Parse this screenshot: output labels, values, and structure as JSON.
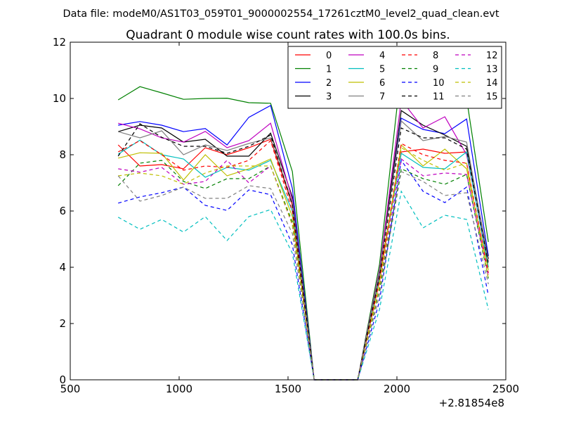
{
  "suptitle": "Data file: modeM0/AS1T03_059T01_9000002554_17261cztM0_level2_quad_clean.evt",
  "chart_data": {
    "type": "line",
    "title": "Quadrant 0 module wise count rates with 100.0s bins.",
    "xlabel": "",
    "ylabel": "",
    "xlim": [
      500,
      2500
    ],
    "ylim": [
      0,
      12
    ],
    "x_offset_label": "+2.81854e8",
    "xticks": [
      500,
      1000,
      1500,
      2000,
      2500
    ],
    "yticks": [
      0,
      2,
      4,
      6,
      8,
      10,
      12
    ],
    "grid": false,
    "legend_position": "top-right",
    "legend_columns": 4,
    "x": [
      720,
      820,
      920,
      1020,
      1120,
      1220,
      1320,
      1420,
      1520,
      1620,
      1720,
      1820,
      1920,
      2020,
      2120,
      2220,
      2320,
      2420
    ],
    "series": [
      {
        "name": "0",
        "color": "#ff0000",
        "dash": "solid",
        "values": [
          8.35,
          7.6,
          7.65,
          7.5,
          8.25,
          8.0,
          8.25,
          8.55,
          6.2,
          0,
          0,
          0,
          3.7,
          8.1,
          8.2,
          8.05,
          8.1,
          4.0
        ]
      },
      {
        "name": "1",
        "color": "#008000",
        "dash": "solid",
        "values": [
          9.95,
          10.42,
          10.2,
          9.97,
          10.0,
          10.01,
          9.85,
          9.83,
          7.4,
          0,
          0,
          0,
          4.1,
          11.05,
          10.75,
          9.7,
          10.0,
          4.9
        ]
      },
      {
        "name": "2",
        "color": "#0000ff",
        "dash": "solid",
        "values": [
          9.05,
          9.18,
          9.05,
          8.82,
          8.93,
          8.35,
          9.33,
          9.75,
          6.8,
          0,
          0,
          0,
          3.8,
          9.3,
          8.9,
          8.75,
          9.27,
          4.4
        ]
      },
      {
        "name": "3",
        "color": "#000000",
        "dash": "solid",
        "values": [
          8.82,
          9.05,
          8.95,
          8.45,
          8.55,
          7.95,
          7.95,
          8.77,
          6.5,
          0,
          0,
          0,
          3.8,
          9.57,
          9.05,
          8.7,
          8.3,
          4.3
        ]
      },
      {
        "name": "4",
        "color": "#bf00bf",
        "dash": "solid",
        "values": [
          9.12,
          8.92,
          8.6,
          8.45,
          8.83,
          8.25,
          8.5,
          9.12,
          6.4,
          0,
          0,
          0,
          3.9,
          9.95,
          8.95,
          9.35,
          8.0,
          4.2
        ]
      },
      {
        "name": "5",
        "color": "#00bfbf",
        "dash": "solid",
        "values": [
          8.02,
          8.52,
          8.0,
          7.85,
          7.2,
          7.55,
          7.45,
          7.8,
          6.0,
          0,
          0,
          0,
          3.6,
          8.05,
          7.55,
          7.5,
          8.1,
          4.0
        ]
      },
      {
        "name": "6",
        "color": "#bfbf00",
        "dash": "solid",
        "values": [
          7.88,
          8.07,
          8.05,
          7.1,
          8.0,
          7.25,
          7.5,
          7.85,
          5.8,
          0,
          0,
          0,
          3.5,
          8.35,
          7.6,
          8.2,
          7.5,
          3.9
        ]
      },
      {
        "name": "7",
        "color": "#808080",
        "dash": "solid",
        "values": [
          8.82,
          8.6,
          8.85,
          8.0,
          8.35,
          8.15,
          8.4,
          8.6,
          6.3,
          0,
          0,
          0,
          3.8,
          9.2,
          8.5,
          8.65,
          8.45,
          4.2
        ]
      },
      {
        "name": "8",
        "color": "#ff0000",
        "dash": "dashed",
        "values": [
          8.1,
          8.5,
          8.0,
          7.45,
          7.6,
          7.55,
          7.8,
          8.5,
          6.0,
          0,
          0,
          0,
          3.5,
          8.4,
          8.0,
          7.8,
          7.7,
          3.8
        ]
      },
      {
        "name": "9",
        "color": "#008000",
        "dash": "dashed",
        "values": [
          6.9,
          7.7,
          7.8,
          7.05,
          6.8,
          7.15,
          7.15,
          7.6,
          5.6,
          0,
          0,
          0,
          3.2,
          7.5,
          7.15,
          6.95,
          7.3,
          3.6
        ]
      },
      {
        "name": "10",
        "color": "#0000ff",
        "dash": "dashed",
        "values": [
          6.28,
          6.5,
          6.65,
          6.85,
          6.2,
          6.02,
          6.75,
          6.58,
          4.8,
          0,
          0,
          0,
          2.8,
          7.8,
          6.7,
          6.3,
          6.85,
          3.0
        ]
      },
      {
        "name": "11",
        "color": "#000000",
        "dash": "dashed",
        "values": [
          7.95,
          9.1,
          8.62,
          8.3,
          8.3,
          8.05,
          8.3,
          8.7,
          6.2,
          0,
          0,
          0,
          3.7,
          8.95,
          8.6,
          8.6,
          8.2,
          4.1
        ]
      },
      {
        "name": "12",
        "color": "#bf00bf",
        "dash": "dashed",
        "values": [
          7.5,
          7.38,
          7.55,
          6.95,
          7.05,
          7.8,
          7.0,
          7.6,
          5.5,
          0,
          0,
          0,
          3.3,
          7.85,
          7.25,
          7.35,
          7.3,
          3.7
        ]
      },
      {
        "name": "13",
        "color": "#00bfbf",
        "dash": "dashed",
        "values": [
          5.78,
          5.35,
          5.7,
          5.25,
          5.8,
          4.95,
          5.8,
          6.05,
          4.5,
          0,
          0,
          0,
          2.5,
          6.7,
          5.4,
          5.85,
          5.7,
          2.5
        ]
      },
      {
        "name": "14",
        "color": "#bfbf00",
        "dash": "dashed",
        "values": [
          7.25,
          7.35,
          7.25,
          6.95,
          7.35,
          7.6,
          7.6,
          7.6,
          5.5,
          0,
          0,
          0,
          3.3,
          8.25,
          7.8,
          7.45,
          7.7,
          3.6
        ]
      },
      {
        "name": "15",
        "color": "#808080",
        "dash": "dashed",
        "values": [
          7.25,
          6.35,
          6.55,
          6.85,
          6.45,
          6.45,
          6.9,
          6.8,
          5.2,
          0,
          0,
          0,
          3.0,
          7.4,
          7.05,
          6.55,
          6.65,
          3.4
        ]
      }
    ]
  }
}
